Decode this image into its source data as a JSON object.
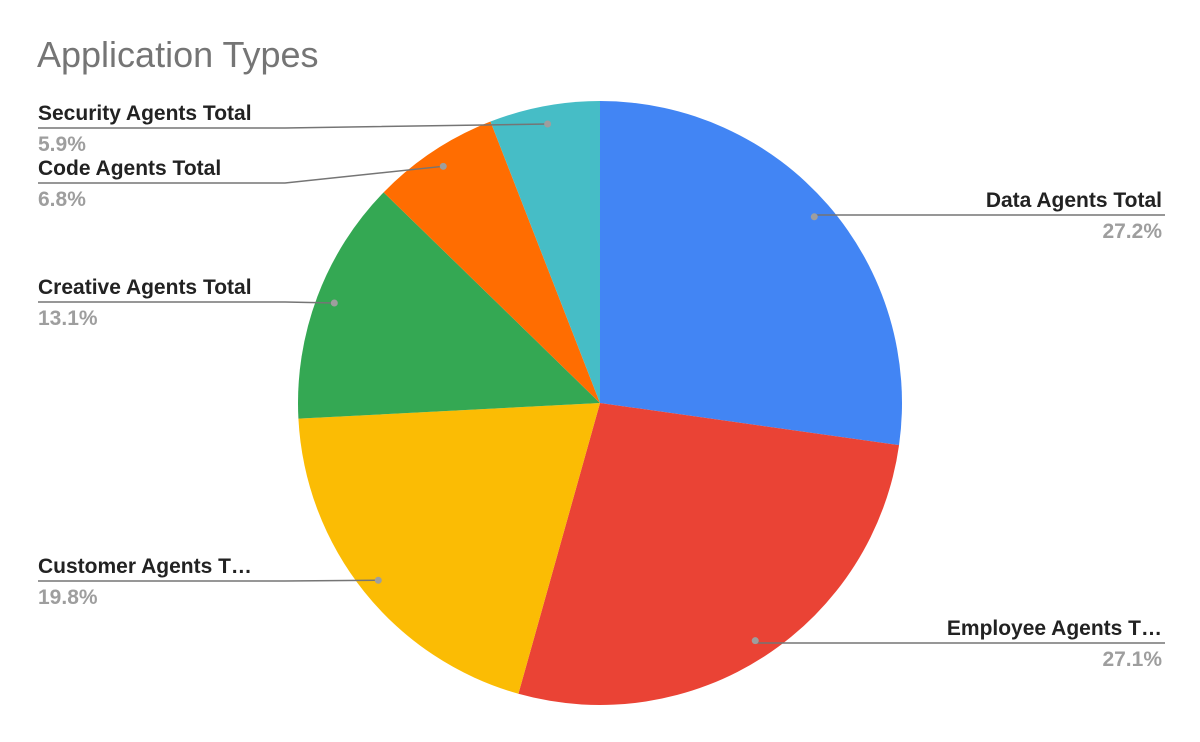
{
  "chart_data": {
    "type": "pie",
    "title": "Application Types",
    "categories": [
      "Data Agents Total",
      "Employee Agents T…",
      "Customer Agents T…",
      "Creative Agents Total",
      "Code Agents Total",
      "Security Agents Total"
    ],
    "values": [
      27.2,
      27.1,
      19.8,
      13.1,
      6.8,
      5.9
    ],
    "value_labels": [
      "27.2%",
      "27.1%",
      "19.8%",
      "13.1%",
      "6.8%",
      "5.9%"
    ],
    "colors": [
      "#4285f4",
      "#ea4335",
      "#fbbc04",
      "#34a853",
      "#ff6d01",
      "#46bdc6"
    ]
  }
}
